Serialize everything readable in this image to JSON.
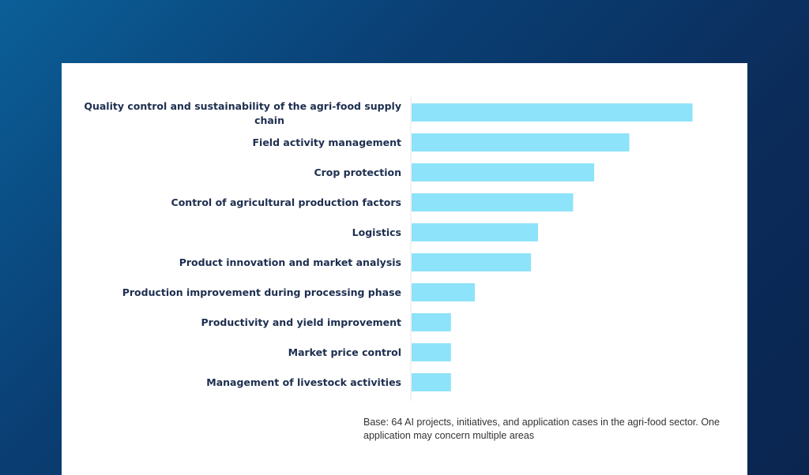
{
  "chart_data": {
    "type": "bar",
    "orientation": "horizontal",
    "categories": [
      "Quality control and sustainability of the agri-food supply chain",
      "Field activity management",
      "Crop protection",
      "Control of agricultural production factors",
      "Logistics",
      "Product innovation and market analysis",
      "Production improvement during processing phase",
      "Productivity and yield improvement",
      "Market price control",
      "Management of livestock activities"
    ],
    "label_lines": [
      [
        "Quality control and sustainability of the agri-food supply",
        "chain"
      ],
      [
        "Field activity management"
      ],
      [
        "Crop protection"
      ],
      [
        "Control of agricultural production factors"
      ],
      [
        "Logistics"
      ],
      [
        "Product innovation and market analysis"
      ],
      [
        "Production improvement during processing phase"
      ],
      [
        "Productivity and yield improvement"
      ],
      [
        "Market price control"
      ],
      [
        "Management of livestock activities"
      ]
    ],
    "values": [
      40,
      31,
      26,
      23,
      18,
      17,
      9,
      5.6,
      5.6,
      5.6
    ],
    "xlim": [
      0,
      45
    ],
    "grid": false,
    "bar_color": "#8de3f9",
    "label_color": "#1d2e4f",
    "note": "Base: 64 AI projects, initiatives, and application cases in the agri-food sector. One application may concern multiple areas"
  }
}
